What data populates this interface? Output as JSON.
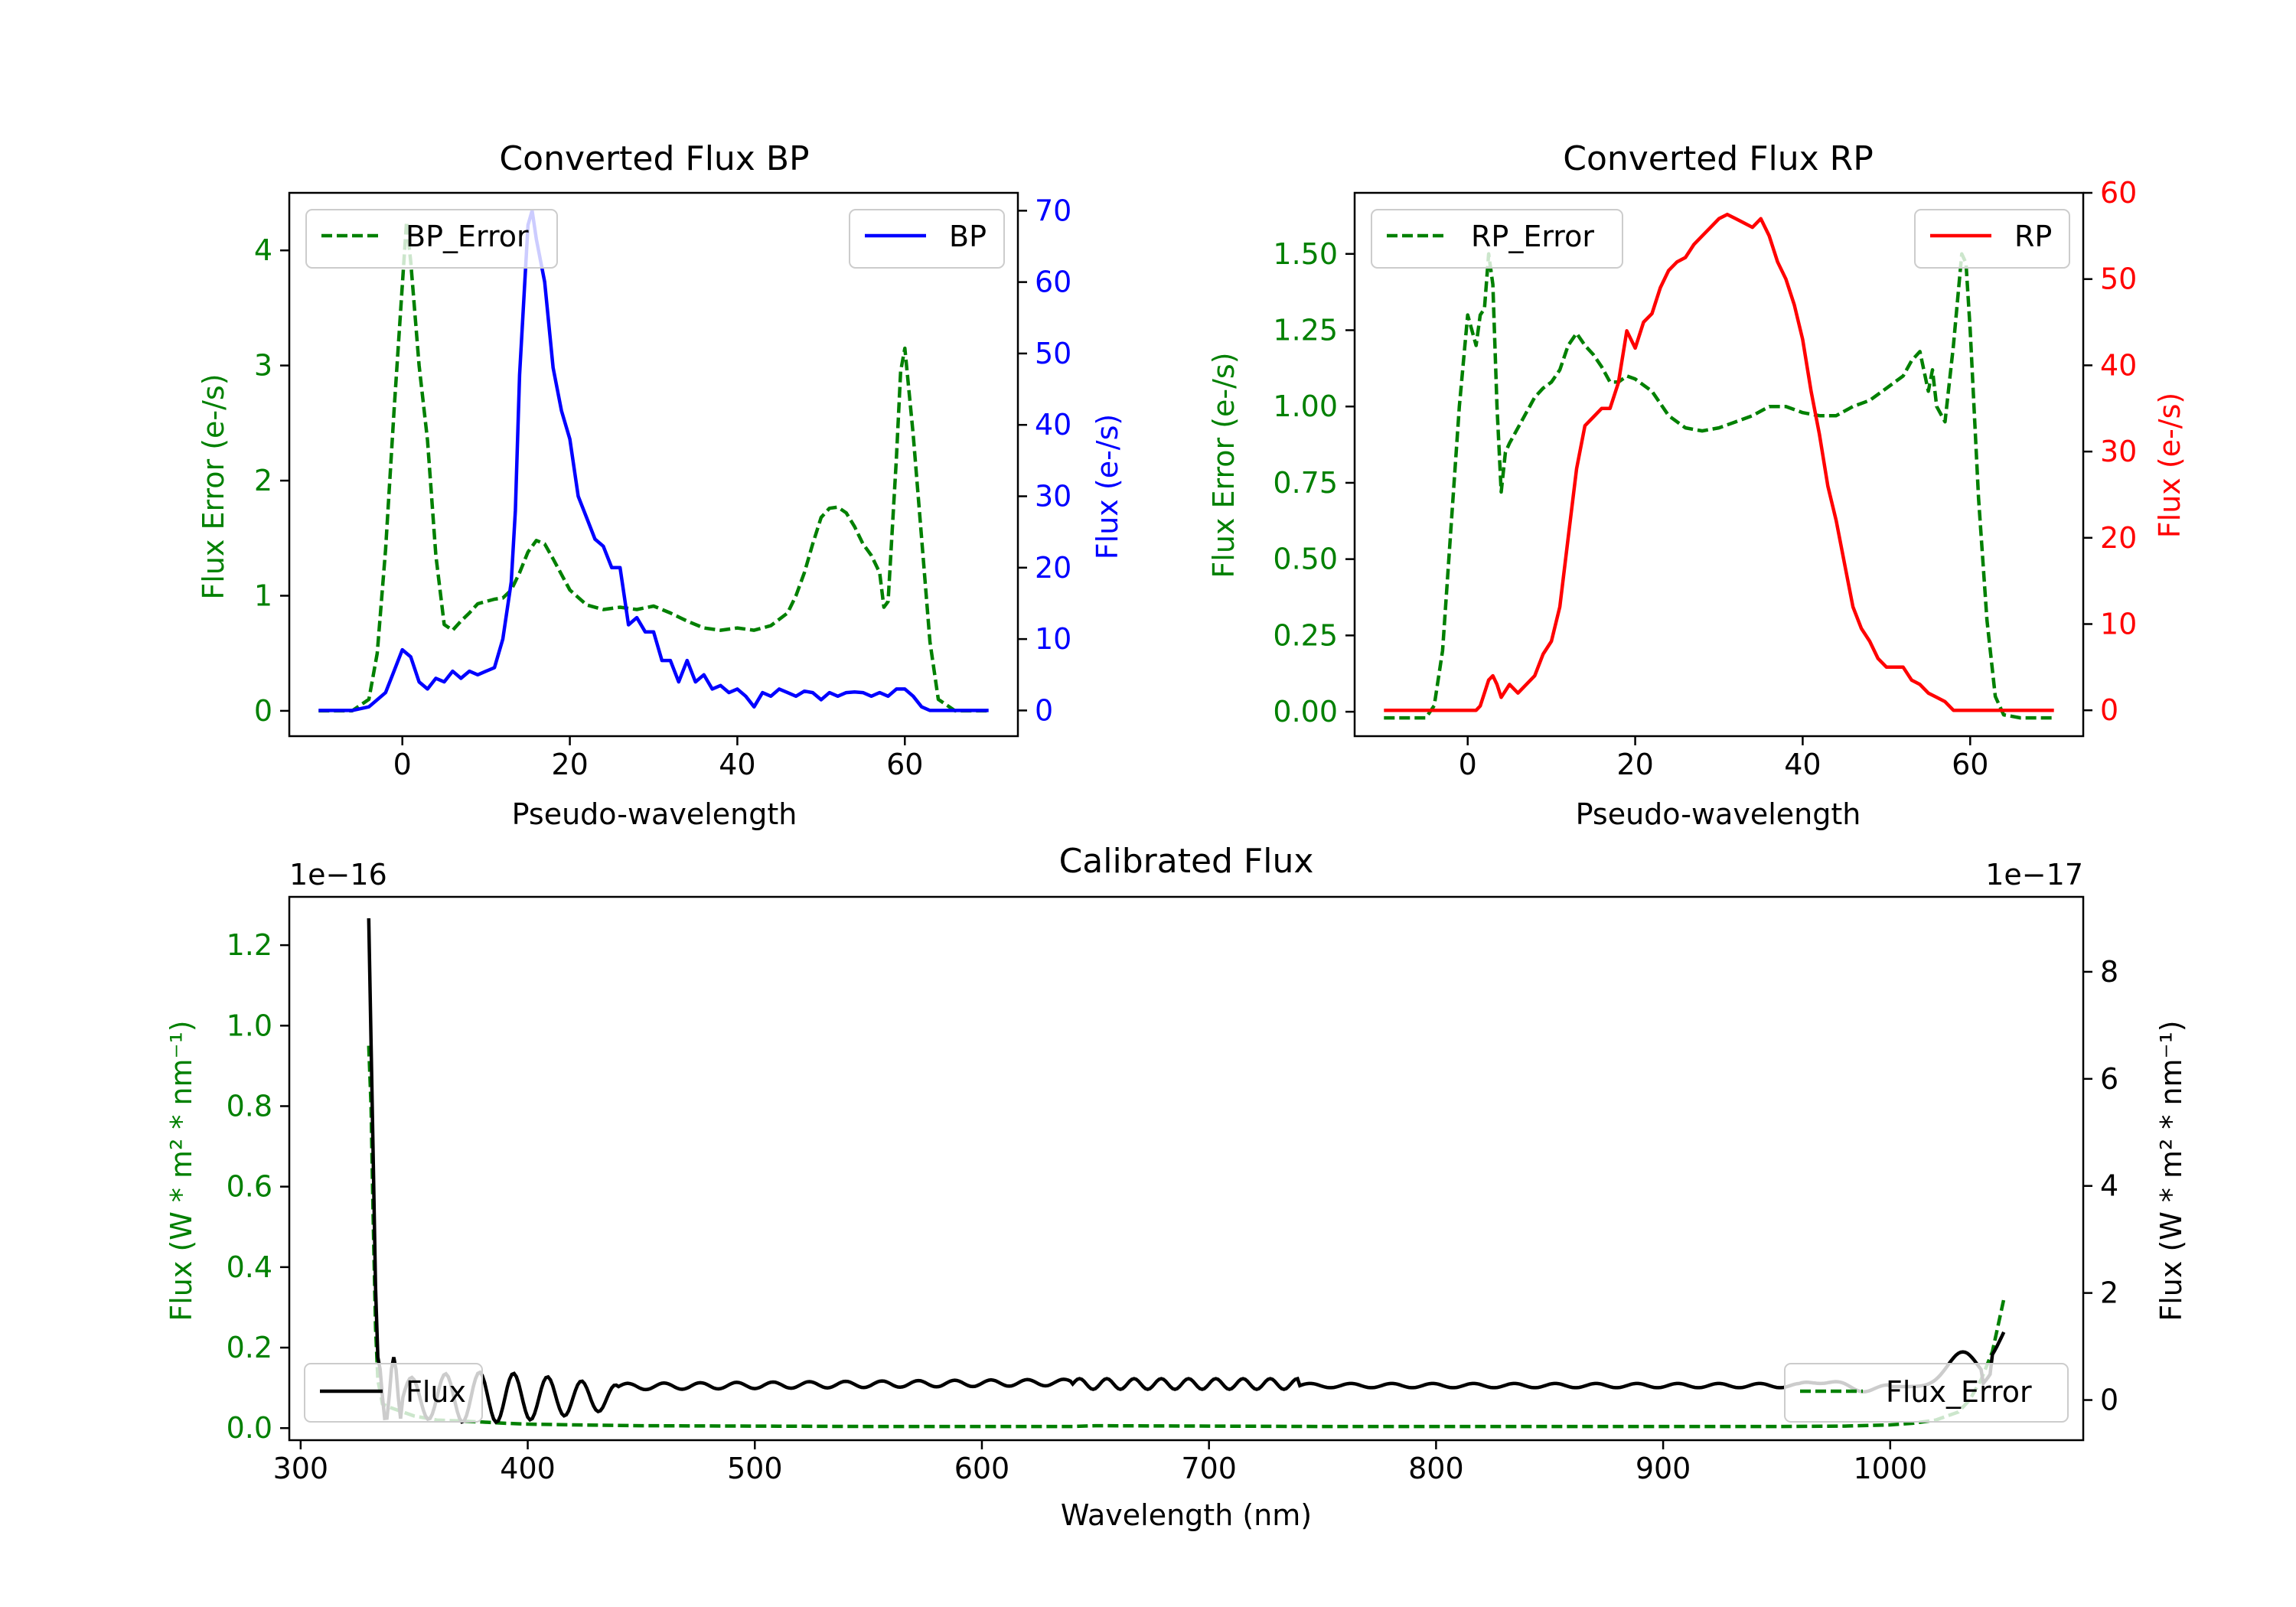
{
  "colors": {
    "error": "#008000",
    "bp": "#0000ff",
    "rp": "#ff0000",
    "flux": "#000000",
    "axis": "#000000",
    "legend_border": "#cccccc"
  },
  "chart_data": [
    {
      "id": "bp",
      "type": "line",
      "title": "Converted Flux BP",
      "xlabel": "Pseudo-wavelength",
      "ylabel_left": "Flux Error (e-/s)",
      "ylabel_right": "Flux (e-/s)",
      "xlim": [
        -13.5,
        73.5
      ],
      "ylim_left": [
        -0.22,
        4.5
      ],
      "ylim_right": [
        -3.6,
        72.5
      ],
      "xticks": [
        0,
        20,
        40,
        60
      ],
      "yticks_left": [
        0,
        1,
        2,
        3,
        4
      ],
      "yticks_right": [
        0,
        10,
        20,
        30,
        40,
        50,
        60,
        70
      ],
      "legend_left": "BP_Error",
      "legend_right": "BP",
      "error_series": {
        "name": "BP_Error",
        "x": [
          -10,
          -6,
          -4,
          -3,
          -2,
          -1,
          0,
          0.5,
          1,
          2,
          3,
          4,
          5,
          6,
          7,
          8,
          9,
          10,
          11,
          12,
          13,
          14,
          15,
          16,
          17,
          18,
          20,
          22,
          24,
          26,
          28,
          30,
          32,
          34,
          36,
          38,
          40,
          42,
          44,
          46,
          47,
          48,
          49,
          50,
          51,
          52,
          53,
          54,
          55,
          56,
          57,
          57.5,
          58,
          59,
          59.5,
          60,
          61,
          62,
          63,
          64,
          66,
          70
        ],
        "y": [
          0,
          0,
          0.1,
          0.5,
          1.4,
          2.6,
          3.7,
          4.25,
          3.9,
          3,
          2.35,
          1.35,
          0.75,
          0.7,
          0.78,
          0.85,
          0.93,
          0.95,
          0.97,
          0.98,
          1.05,
          1.2,
          1.38,
          1.48,
          1.45,
          1.32,
          1.05,
          0.92,
          0.88,
          0.9,
          0.88,
          0.91,
          0.85,
          0.78,
          0.72,
          0.7,
          0.72,
          0.7,
          0.74,
          0.85,
          1.0,
          1.2,
          1.45,
          1.68,
          1.76,
          1.77,
          1.72,
          1.6,
          1.45,
          1.35,
          1.2,
          0.9,
          0.95,
          2.2,
          2.95,
          3.15,
          2.4,
          1.5,
          0.6,
          0.1,
          0,
          0
        ]
      },
      "flux_series": {
        "name": "BP",
        "x": [
          -10,
          -6,
          -4,
          -2,
          -1,
          0,
          1,
          2,
          3,
          4,
          5,
          6,
          7,
          8,
          9,
          10,
          11,
          12,
          13,
          13.5,
          14,
          15,
          15.5,
          16,
          17,
          18,
          19,
          20,
          21,
          22,
          23,
          24,
          25,
          26,
          27,
          28,
          29,
          30,
          31,
          32,
          33,
          34,
          35,
          36,
          37,
          38,
          39,
          40,
          41,
          42,
          43,
          44,
          45,
          46,
          47,
          48,
          49,
          50,
          51,
          52,
          53,
          54,
          55,
          56,
          57,
          58,
          59,
          60,
          61,
          62,
          63,
          64,
          66,
          70
        ],
        "y": [
          0,
          0,
          0.5,
          2.5,
          5.5,
          8.5,
          7.5,
          4,
          3,
          4.5,
          4,
          5.5,
          4.5,
          5.5,
          5,
          5.5,
          6,
          10,
          18,
          28,
          47,
          68,
          70,
          66,
          60,
          48,
          42,
          38,
          30,
          27,
          24,
          23,
          20,
          20,
          12,
          13,
          11,
          11,
          7,
          7,
          4,
          7,
          4,
          5,
          3,
          3.5,
          2.5,
          3,
          2,
          0.5,
          2.5,
          2,
          3,
          2.5,
          2,
          2.7,
          2.5,
          1.5,
          2.5,
          2,
          2.5,
          2.6,
          2.5,
          2,
          2.5,
          2,
          3,
          3,
          2,
          0.5,
          0,
          0,
          0,
          0
        ]
      }
    },
    {
      "id": "rp",
      "type": "line",
      "title": "Converted Flux RP",
      "xlabel": "Pseudo-wavelength",
      "ylabel_left": "Flux Error (e-/s)",
      "ylabel_right": "Flux (e-/s)",
      "xlim": [
        -13.5,
        73.5
      ],
      "ylim_left": [
        -0.08,
        1.7
      ],
      "ylim_right": [
        -3,
        60
      ],
      "xticks": [
        0,
        20,
        40,
        60
      ],
      "yticks_left": [
        "0.00",
        "0.25",
        "0.50",
        "0.75",
        "1.00",
        "1.25",
        "1.50"
      ],
      "yticks_right": [
        0,
        10,
        20,
        30,
        40,
        50,
        60
      ],
      "legend_left": "RP_Error",
      "legend_right": "RP",
      "error_series": {
        "name": "RP_Error",
        "x": [
          -10,
          -5,
          -4,
          -3,
          -2,
          -1,
          0,
          0.5,
          1,
          1.5,
          2,
          2.5,
          3,
          3.5,
          4,
          4.5,
          5,
          6,
          7,
          8,
          9,
          10,
          11,
          12,
          13,
          14,
          15,
          16,
          17,
          18,
          19,
          20,
          22,
          24,
          26,
          28,
          30,
          32,
          34,
          36,
          38,
          40,
          42,
          44,
          46,
          48,
          50,
          52,
          53,
          54,
          55,
          55.5,
          56,
          57,
          58,
          59,
          59.5,
          60,
          61,
          62,
          63,
          64,
          66,
          70
        ],
        "y": [
          -0.02,
          -0.02,
          0.02,
          0.2,
          0.6,
          1.0,
          1.3,
          1.25,
          1.2,
          1.3,
          1.32,
          1.5,
          1.4,
          1.0,
          0.72,
          0.85,
          0.88,
          0.93,
          0.98,
          1.03,
          1.06,
          1.08,
          1.12,
          1.2,
          1.24,
          1.2,
          1.17,
          1.13,
          1.08,
          1.08,
          1.1,
          1.09,
          1.05,
          0.97,
          0.93,
          0.92,
          0.93,
          0.95,
          0.97,
          1.0,
          1.0,
          0.98,
          0.97,
          0.97,
          1.0,
          1.02,
          1.06,
          1.1,
          1.15,
          1.18,
          1.05,
          1.12,
          1.0,
          0.95,
          1.2,
          1.5,
          1.47,
          1.25,
          0.7,
          0.3,
          0.05,
          -0.01,
          -0.02,
          -0.02
        ]
      },
      "flux_series": {
        "name": "RP",
        "x": [
          -10,
          -5,
          -3,
          -2,
          -1,
          0,
          1,
          1.5,
          2,
          2.5,
          3,
          3.5,
          4,
          5,
          6,
          7,
          8,
          9,
          10,
          11,
          12,
          13,
          14,
          15,
          16,
          17,
          18,
          19,
          20,
          21,
          22,
          23,
          24,
          25,
          26,
          27,
          28,
          29,
          30,
          31,
          32,
          33,
          34,
          35,
          36,
          37,
          38,
          39,
          40,
          41,
          42,
          43,
          44,
          45,
          46,
          47,
          48,
          49,
          50,
          51,
          52,
          53,
          54,
          55,
          56,
          57,
          58,
          59,
          60,
          61,
          62,
          63,
          64,
          66,
          70
        ],
        "y": [
          0,
          0,
          0,
          0,
          0,
          0,
          0,
          0.5,
          2,
          3.5,
          4,
          3,
          1.5,
          3,
          2,
          3,
          4,
          6.5,
          8,
          12,
          20,
          28,
          33,
          34,
          35,
          35,
          38,
          44,
          42,
          45,
          46,
          49,
          51,
          52,
          52.5,
          54,
          55,
          56,
          57,
          57.5,
          57,
          56.5,
          56,
          57,
          55,
          52,
          50,
          47,
          43,
          37,
          32,
          26,
          22,
          17,
          12,
          9.5,
          8,
          6,
          5,
          5,
          5,
          3.5,
          3,
          2,
          1.5,
          1,
          0,
          0,
          0,
          0,
          0,
          0,
          0,
          0,
          0
        ]
      }
    },
    {
      "id": "calibrated",
      "type": "line",
      "title": "Calibrated Flux",
      "xlabel": "Wavelength (nm)",
      "ylabel_left": "Flux (W * m² * nm⁻¹)",
      "ylabel_right": "Flux (W * m² * nm⁻¹)",
      "offset_left": "1e−16",
      "offset_right": "1e−17",
      "xlim": [
        295,
        1085
      ],
      "ylim_left": [
        -0.03,
        1.32
      ],
      "ylim_right": [
        -0.75,
        9.4
      ],
      "xticks": [
        300,
        400,
        500,
        600,
        700,
        800,
        900,
        1000
      ],
      "yticks_left": [
        "0.0",
        "0.2",
        "0.4",
        "0.6",
        "0.8",
        "1.0",
        "1.2"
      ],
      "yticks_right": [
        0,
        2,
        4,
        6,
        8
      ],
      "legend_left": "Flux",
      "legend_right": "Flux_Error",
      "error_series": {
        "name": "Flux_Error",
        "axis": "left",
        "x": [
          330,
          331,
          332,
          333,
          334,
          336,
          340,
          345,
          350,
          360,
          370,
          380,
          390,
          400,
          420,
          450,
          500,
          550,
          600,
          640,
          650,
          700,
          750,
          800,
          850,
          900,
          950,
          980,
          1000,
          1010,
          1020,
          1030,
          1035,
          1040,
          1045,
          1050
        ],
        "y": [
          0.95,
          0.8,
          0.5,
          0.25,
          0.12,
          0.06,
          0.05,
          0.04,
          0.03,
          0.02,
          0.018,
          0.015,
          0.012,
          0.01,
          0.008,
          0.006,
          0.005,
          0.004,
          0.004,
          0.004,
          0.006,
          0.005,
          0.004,
          0.004,
          0.004,
          0.004,
          0.004,
          0.005,
          0.008,
          0.012,
          0.02,
          0.04,
          0.07,
          0.12,
          0.19,
          0.32
        ]
      },
      "flux_series": {
        "name": "Flux",
        "axis": "right",
        "x": [],
        "y": []
      }
    }
  ]
}
